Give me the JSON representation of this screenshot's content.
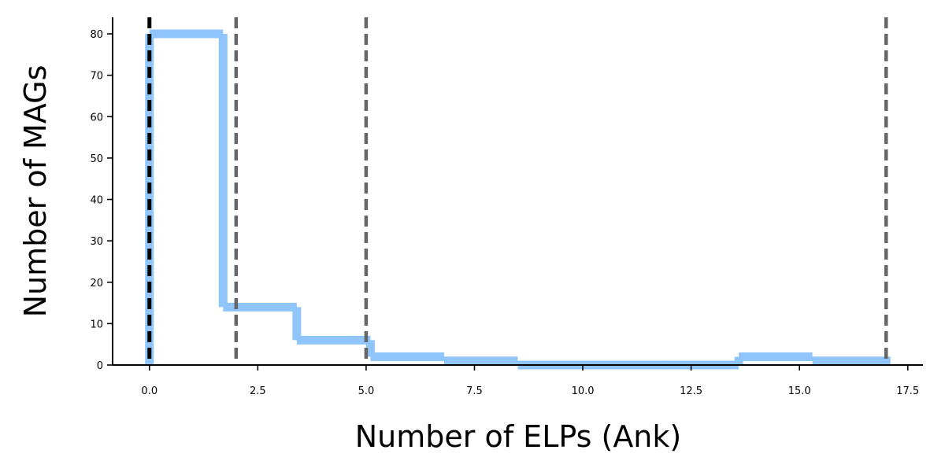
{
  "chart_data": {
    "type": "histogram",
    "xlabel": "Number of ELPs (Ank)",
    "ylabel": "Number of MAGs",
    "xlim": [
      -0.85,
      17.85
    ],
    "ylim": [
      0,
      84
    ],
    "xticks": [
      0.0,
      2.5,
      5.0,
      7.5,
      10.0,
      12.5,
      15.0,
      17.5
    ],
    "xtick_labels": [
      "0.0",
      "2.5",
      "5.0",
      "7.5",
      "10.0",
      "12.5",
      "15.0",
      "17.5"
    ],
    "yticks": [
      0,
      10,
      20,
      30,
      40,
      50,
      60,
      70,
      80
    ],
    "ytick_labels": [
      "0",
      "10",
      "20",
      "30",
      "40",
      "50",
      "60",
      "70",
      "80"
    ],
    "bin_edges": [
      0,
      1.7,
      3.4,
      5.1,
      6.8,
      8.5,
      10.2,
      11.9,
      13.6,
      15.3,
      17
    ],
    "counts": [
      80,
      14,
      6,
      2,
      1,
      0,
      0,
      0,
      2,
      1
    ],
    "histtype": "step",
    "step_color": "#90c5fb",
    "vlines": [
      {
        "x": 0,
        "color": "#000000",
        "style": "dashed"
      },
      {
        "x": 2,
        "color": "#666666",
        "style": "dashed"
      },
      {
        "x": 5,
        "color": "#666666",
        "style": "dashed"
      },
      {
        "x": 17,
        "color": "#666666",
        "style": "dashed"
      }
    ],
    "grid": false,
    "legend": "none"
  }
}
